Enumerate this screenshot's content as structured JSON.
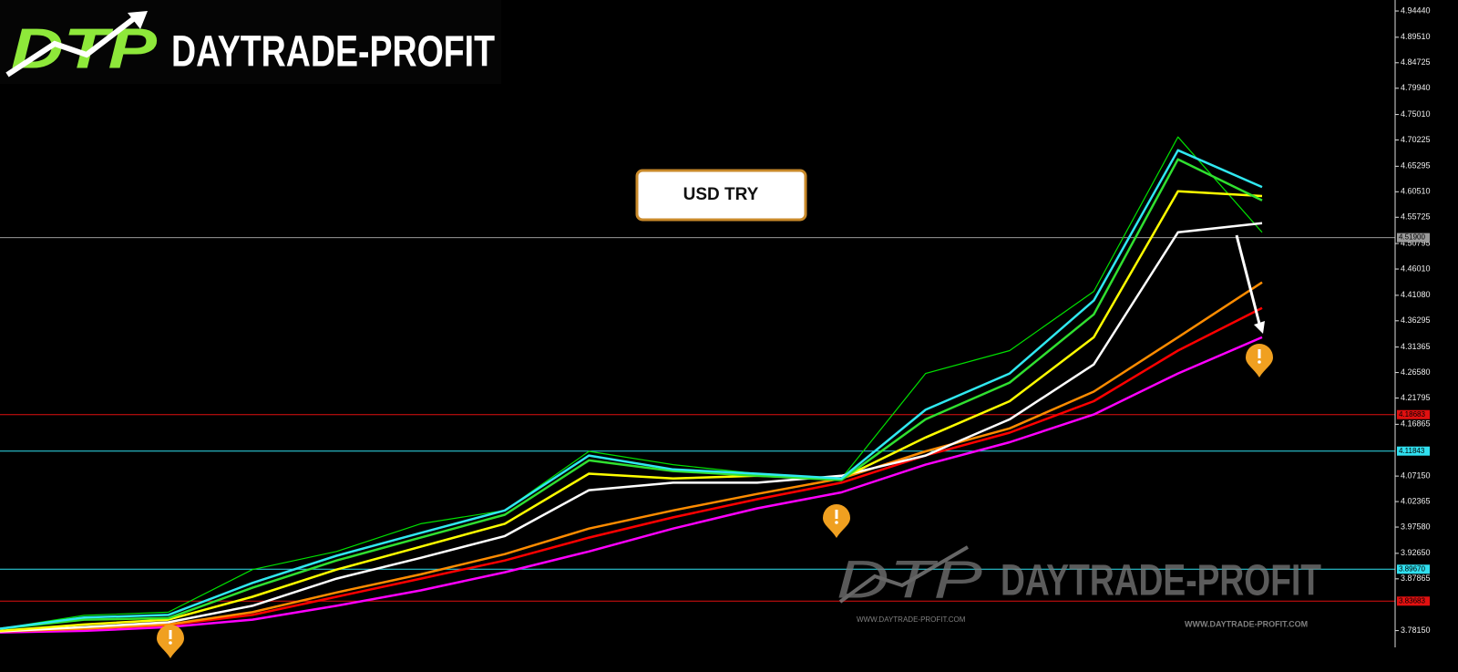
{
  "chart_data": {
    "type": "line",
    "title": "USD TRY",
    "logo_mark": "DTP",
    "logo_text": "DAYTRADE-PROFIT",
    "watermark_url": "WWW.DAYTRADE-PROFIT.COM",
    "ylim": [
      3.75,
      4.965
    ],
    "yticks": [
      {
        "value": 4.9444,
        "label": "4.94440"
      },
      {
        "value": 4.8951,
        "label": "4.89510"
      },
      4.84725,
      {
        "value": 4.7994,
        "label": "4.79940"
      },
      {
        "value": 4.7501,
        "label": "4.75010"
      },
      4.70225,
      4.65295,
      {
        "value": 4.6051,
        "label": "4.60510"
      },
      4.55725,
      4.50795,
      {
        "value": 4.4601,
        "label": "4.46010"
      },
      {
        "value": 4.4108,
        "label": "4.41080"
      },
      4.36295,
      4.31365,
      {
        "value": 4.2658,
        "label": "4.26580"
      },
      4.21795,
      4.16865,
      {
        "value": 4.0715,
        "label": "4.07150"
      },
      4.02365,
      {
        "value": 3.9758,
        "label": "3.97580"
      },
      {
        "value": 3.9265,
        "label": "3.92650"
      },
      3.87865,
      {
        "value": 3.7815,
        "label": "3.78150"
      }
    ],
    "levels": [
      {
        "value": 4.519,
        "label": "4.51900",
        "color": "#9a9a9a"
      },
      {
        "value": 4.18683,
        "color": "#e01010"
      },
      {
        "value": 4.11843,
        "color": "#30e0f0"
      },
      {
        "value": 3.8967,
        "label": "3.89670",
        "color": "#30e0f0"
      },
      {
        "value": 3.83683,
        "color": "#e01010"
      }
    ],
    "series": [
      {
        "color": "#00e000",
        "width": 1.2,
        "values": [
          3.785,
          3.81,
          3.816,
          3.896,
          3.93,
          3.982,
          4.007,
          4.118,
          4.093,
          4.076,
          4.067,
          4.264,
          4.307,
          4.418,
          4.708,
          4.529
        ]
      },
      {
        "color": "#ff00ff",
        "width": 2.5,
        "values": [
          3.778,
          3.781,
          3.788,
          3.802,
          3.828,
          3.857,
          3.891,
          3.93,
          3.973,
          4.011,
          4.041,
          4.093,
          4.135,
          4.187,
          4.264,
          4.332
        ]
      },
      {
        "color": "#ff0000",
        "width": 2.5,
        "values": [
          3.78,
          3.785,
          3.792,
          3.811,
          3.845,
          3.879,
          3.913,
          3.956,
          3.994,
          4.028,
          4.059,
          4.11,
          4.153,
          4.212,
          4.307,
          4.387
        ]
      },
      {
        "color": "#ff8c00",
        "width": 2.5,
        "values": [
          3.78,
          3.785,
          3.793,
          3.816,
          3.853,
          3.887,
          3.925,
          3.973,
          4.007,
          4.038,
          4.067,
          4.118,
          4.161,
          4.23,
          4.332,
          4.435
        ]
      },
      {
        "color": "#ffffff",
        "width": 2.5,
        "values": [
          3.78,
          3.788,
          3.797,
          3.828,
          3.879,
          3.918,
          3.959,
          4.045,
          4.059,
          4.059,
          4.072,
          4.11,
          4.178,
          4.281,
          4.529,
          4.546
        ]
      },
      {
        "color": "#ffff00",
        "width": 2.5,
        "values": [
          3.781,
          3.793,
          3.802,
          3.845,
          3.896,
          3.939,
          3.982,
          4.076,
          4.067,
          4.072,
          4.067,
          4.144,
          4.212,
          4.332,
          4.606,
          4.597
        ]
      },
      {
        "color": "#30e030",
        "width": 2.5,
        "values": [
          3.785,
          3.802,
          3.805,
          3.862,
          3.913,
          3.956,
          3.999,
          4.101,
          4.081,
          4.072,
          4.064,
          4.178,
          4.247,
          4.375,
          4.666,
          4.589
        ]
      },
      {
        "color": "#30e8f0",
        "width": 2.5,
        "values": [
          3.785,
          3.806,
          3.811,
          3.871,
          3.922,
          3.965,
          4.007,
          4.11,
          4.084,
          4.076,
          4.067,
          4.196,
          4.264,
          4.401,
          4.683,
          4.614
        ]
      }
    ]
  }
}
